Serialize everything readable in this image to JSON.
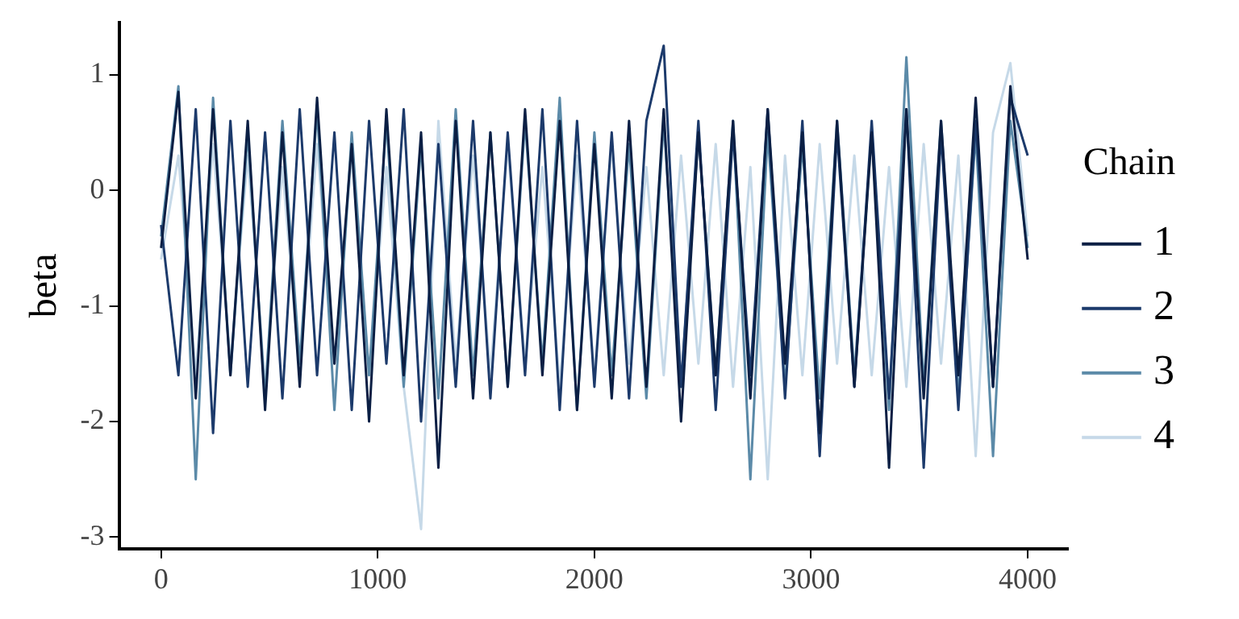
{
  "chart_data": {
    "type": "line",
    "ylabel": "beta",
    "legend_title": "Chain",
    "legend": "right",
    "grid": false,
    "marker": "none",
    "line_style": "solid",
    "x": [
      0,
      80,
      160,
      240,
      320,
      400,
      480,
      560,
      640,
      720,
      800,
      880,
      960,
      1040,
      1120,
      1200,
      1280,
      1360,
      1440,
      1520,
      1600,
      1680,
      1760,
      1840,
      1920,
      2000,
      2080,
      2160,
      2240,
      2320,
      2400,
      2480,
      2560,
      2640,
      2720,
      2800,
      2880,
      2960,
      3040,
      3120,
      3200,
      3280,
      3360,
      3440,
      3520,
      3600,
      3680,
      3760,
      3840,
      3920,
      4000
    ],
    "xlim": [
      -194,
      4186
    ],
    "xticks": [
      0,
      1000,
      2000,
      3000,
      4000
    ],
    "ylim": [
      -3.1,
      1.45
    ],
    "yticks": [
      -3,
      -2,
      -1,
      0,
      1
    ],
    "series": [
      {
        "name": "1",
        "color": "#0b1f44",
        "values": [
          -0.5,
          0.85,
          -1.8,
          0.7,
          -1.6,
          0.6,
          -1.9,
          0.5,
          -1.7,
          0.8,
          -1.5,
          0.4,
          -2.0,
          0.7,
          -1.6,
          0.5,
          -2.4,
          0.6,
          -1.8,
          0.5,
          -1.7,
          0.7,
          -1.6,
          0.6,
          -1.9,
          0.4,
          -1.8,
          0.6,
          -1.7,
          0.7,
          -2.0,
          0.5,
          -1.6,
          0.6,
          -1.8,
          0.7,
          -1.5,
          0.5,
          -2.1,
          0.6,
          -1.7,
          0.5,
          -2.4,
          0.7,
          -1.8,
          0.6,
          -1.6,
          0.8,
          -1.7,
          0.9,
          -0.6
        ]
      },
      {
        "name": "2",
        "color": "#1c3a6b",
        "values": [
          -0.3,
          -1.6,
          0.7,
          -2.1,
          0.6,
          -1.7,
          0.5,
          -1.8,
          0.7,
          -1.6,
          0.5,
          -1.9,
          0.6,
          -1.5,
          0.7,
          -2.0,
          0.4,
          -1.7,
          0.6,
          -1.8,
          0.5,
          -1.6,
          0.7,
          -1.9,
          0.6,
          -1.7,
          0.5,
          -1.8,
          0.6,
          1.25,
          -1.7,
          0.6,
          -1.9,
          0.5,
          -1.6,
          0.7,
          -1.8,
          0.6,
          -2.3,
          0.5,
          -1.7,
          0.6,
          -1.8,
          0.7,
          -2.4,
          0.5,
          -1.9,
          0.6,
          -1.7,
          0.8,
          0.3
        ]
      },
      {
        "name": "3",
        "color": "#5b8aa8",
        "values": [
          -0.4,
          0.9,
          -2.5,
          0.8,
          -1.6,
          0.5,
          -1.8,
          0.6,
          -1.5,
          0.7,
          -1.9,
          0.5,
          -1.6,
          0.6,
          -1.7,
          0.4,
          -1.8,
          0.7,
          -1.6,
          0.5,
          -1.7,
          0.6,
          -1.5,
          0.8,
          -1.9,
          0.5,
          -1.6,
          0.4,
          -1.8,
          0.6,
          -1.7,
          0.5,
          -1.6,
          0.6,
          -2.5,
          0.5,
          -1.7,
          0.4,
          -1.8,
          0.6,
          -1.6,
          0.5,
          -1.9,
          1.15,
          -1.7,
          0.6,
          -1.8,
          0.5,
          -2.3,
          0.6,
          -0.5
        ]
      },
      {
        "name": "4",
        "color": "#c6d9e8",
        "values": [
          -0.6,
          0.3,
          -1.6,
          0.4,
          -1.5,
          0.3,
          -1.7,
          0.2,
          -1.6,
          0.4,
          -1.5,
          0.3,
          -1.6,
          0.2,
          -1.7,
          -2.93,
          0.6,
          -1.5,
          0.3,
          -1.6,
          0.4,
          -1.5,
          0.2,
          -1.7,
          0.3,
          -1.6,
          0.4,
          -1.5,
          0.2,
          -1.6,
          0.3,
          -1.5,
          0.4,
          -1.7,
          0.2,
          -2.5,
          0.3,
          -1.6,
          0.4,
          -1.5,
          0.3,
          -1.6,
          0.2,
          -1.7,
          0.4,
          -1.5,
          0.3,
          -2.3,
          0.5,
          1.1,
          -0.4
        ]
      }
    ]
  }
}
